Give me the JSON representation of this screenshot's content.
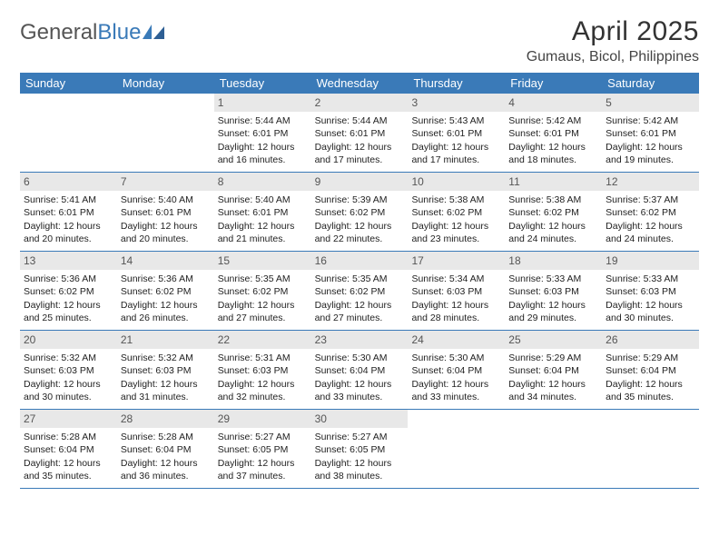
{
  "logo": {
    "word1": "General",
    "word2": "Blue"
  },
  "title": "April 2025",
  "location": "Gumaus, Bicol, Philippines",
  "colors": {
    "brand_blue": "#3a7ab8",
    "daynum_bg": "#e8e8e8",
    "text": "#222222",
    "bg": "#ffffff"
  },
  "dow": [
    "Sunday",
    "Monday",
    "Tuesday",
    "Wednesday",
    "Thursday",
    "Friday",
    "Saturday"
  ],
  "weeks": [
    [
      null,
      null,
      {
        "n": "1",
        "sr": "5:44 AM",
        "ss": "6:01 PM",
        "dl": "12 hours and 16 minutes."
      },
      {
        "n": "2",
        "sr": "5:44 AM",
        "ss": "6:01 PM",
        "dl": "12 hours and 17 minutes."
      },
      {
        "n": "3",
        "sr": "5:43 AM",
        "ss": "6:01 PM",
        "dl": "12 hours and 17 minutes."
      },
      {
        "n": "4",
        "sr": "5:42 AM",
        "ss": "6:01 PM",
        "dl": "12 hours and 18 minutes."
      },
      {
        "n": "5",
        "sr": "5:42 AM",
        "ss": "6:01 PM",
        "dl": "12 hours and 19 minutes."
      }
    ],
    [
      {
        "n": "6",
        "sr": "5:41 AM",
        "ss": "6:01 PM",
        "dl": "12 hours and 20 minutes."
      },
      {
        "n": "7",
        "sr": "5:40 AM",
        "ss": "6:01 PM",
        "dl": "12 hours and 20 minutes."
      },
      {
        "n": "8",
        "sr": "5:40 AM",
        "ss": "6:01 PM",
        "dl": "12 hours and 21 minutes."
      },
      {
        "n": "9",
        "sr": "5:39 AM",
        "ss": "6:02 PM",
        "dl": "12 hours and 22 minutes."
      },
      {
        "n": "10",
        "sr": "5:38 AM",
        "ss": "6:02 PM",
        "dl": "12 hours and 23 minutes."
      },
      {
        "n": "11",
        "sr": "5:38 AM",
        "ss": "6:02 PM",
        "dl": "12 hours and 24 minutes."
      },
      {
        "n": "12",
        "sr": "5:37 AM",
        "ss": "6:02 PM",
        "dl": "12 hours and 24 minutes."
      }
    ],
    [
      {
        "n": "13",
        "sr": "5:36 AM",
        "ss": "6:02 PM",
        "dl": "12 hours and 25 minutes."
      },
      {
        "n": "14",
        "sr": "5:36 AM",
        "ss": "6:02 PM",
        "dl": "12 hours and 26 minutes."
      },
      {
        "n": "15",
        "sr": "5:35 AM",
        "ss": "6:02 PM",
        "dl": "12 hours and 27 minutes."
      },
      {
        "n": "16",
        "sr": "5:35 AM",
        "ss": "6:02 PM",
        "dl": "12 hours and 27 minutes."
      },
      {
        "n": "17",
        "sr": "5:34 AM",
        "ss": "6:03 PM",
        "dl": "12 hours and 28 minutes."
      },
      {
        "n": "18",
        "sr": "5:33 AM",
        "ss": "6:03 PM",
        "dl": "12 hours and 29 minutes."
      },
      {
        "n": "19",
        "sr": "5:33 AM",
        "ss": "6:03 PM",
        "dl": "12 hours and 30 minutes."
      }
    ],
    [
      {
        "n": "20",
        "sr": "5:32 AM",
        "ss": "6:03 PM",
        "dl": "12 hours and 30 minutes."
      },
      {
        "n": "21",
        "sr": "5:32 AM",
        "ss": "6:03 PM",
        "dl": "12 hours and 31 minutes."
      },
      {
        "n": "22",
        "sr": "5:31 AM",
        "ss": "6:03 PM",
        "dl": "12 hours and 32 minutes."
      },
      {
        "n": "23",
        "sr": "5:30 AM",
        "ss": "6:04 PM",
        "dl": "12 hours and 33 minutes."
      },
      {
        "n": "24",
        "sr": "5:30 AM",
        "ss": "6:04 PM",
        "dl": "12 hours and 33 minutes."
      },
      {
        "n": "25",
        "sr": "5:29 AM",
        "ss": "6:04 PM",
        "dl": "12 hours and 34 minutes."
      },
      {
        "n": "26",
        "sr": "5:29 AM",
        "ss": "6:04 PM",
        "dl": "12 hours and 35 minutes."
      }
    ],
    [
      {
        "n": "27",
        "sr": "5:28 AM",
        "ss": "6:04 PM",
        "dl": "12 hours and 35 minutes."
      },
      {
        "n": "28",
        "sr": "5:28 AM",
        "ss": "6:04 PM",
        "dl": "12 hours and 36 minutes."
      },
      {
        "n": "29",
        "sr": "5:27 AM",
        "ss": "6:05 PM",
        "dl": "12 hours and 37 minutes."
      },
      {
        "n": "30",
        "sr": "5:27 AM",
        "ss": "6:05 PM",
        "dl": "12 hours and 38 minutes."
      },
      null,
      null,
      null
    ]
  ],
  "labels": {
    "sunrise": "Sunrise:",
    "sunset": "Sunset:",
    "daylight": "Daylight:"
  }
}
